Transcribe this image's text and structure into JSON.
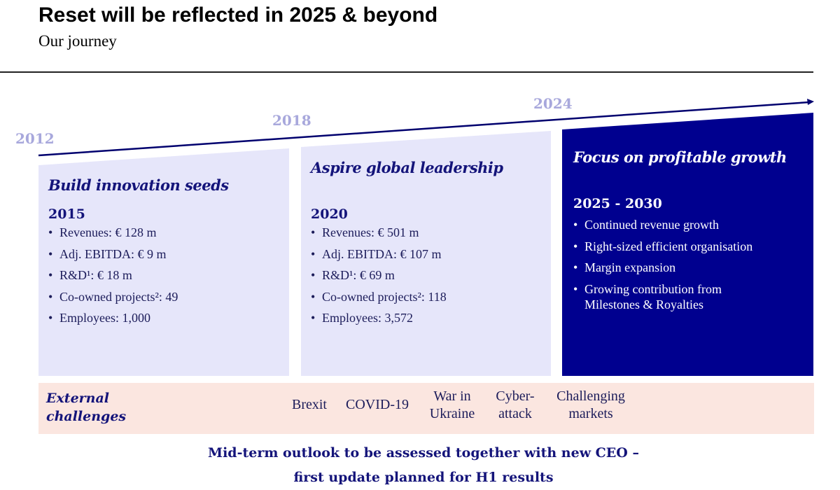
{
  "header": {
    "title": "Reset will be reflected in 2025 & beyond",
    "subtitle": "Our journey"
  },
  "timeline": {
    "years": [
      "2012",
      "2018",
      "2024"
    ]
  },
  "panels": [
    {
      "title": "Build innovation seeds",
      "period": "2015",
      "items": [
        "Revenues: € 128 m",
        "Adj. EBITDA: € 9 m",
        "R&D¹: € 18 m",
        "Co-owned projects²: 49",
        "Employees: 1,000"
      ]
    },
    {
      "title": "Aspire global leadership",
      "period": "2020",
      "items": [
        "Revenues: € 501 m",
        "Adj. EBITDA: € 107 m",
        "R&D¹: € 69 m",
        "Co-owned projects²: 118",
        "Employees: 3,572"
      ]
    },
    {
      "title": "Focus on profitable growth",
      "period": "2025 - 2030",
      "items": [
        "Continued revenue growth",
        "Right-sized efficient organisation",
        "Margin expansion",
        "Growing contribution from Milestones & Royalties"
      ]
    }
  ],
  "challenges": {
    "label_line1": "External",
    "label_line2": "challenges",
    "items": [
      [
        "Brexit"
      ],
      [
        "COVID-19"
      ],
      [
        "War in",
        "Ukraine"
      ],
      [
        "Cyber-",
        "attack"
      ],
      [
        "Challenging",
        "markets"
      ]
    ]
  },
  "outlook": {
    "line1": "Mid-term outlook to be assessed together with new CEO –",
    "line2": "first update planned for H1 results"
  },
  "colors": {
    "navy": "#00008f",
    "lavender": "#e6e6fa",
    "pink": "#fbe6e0",
    "year": "#a8a8dc"
  }
}
